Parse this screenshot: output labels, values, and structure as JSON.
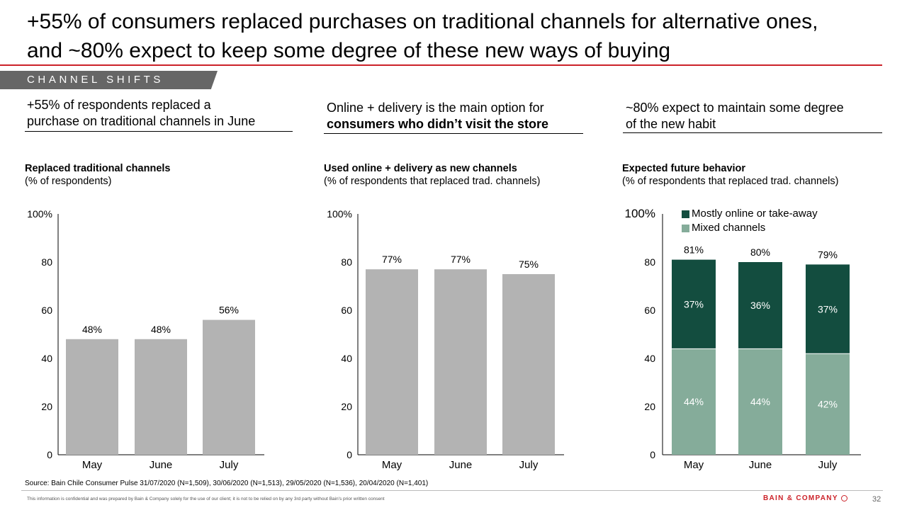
{
  "headline": {
    "line1": "+55% of consumers replaced purchases on traditional channels for alternative ones,",
    "line2": "and ~80% expect to keep some degree of these new ways of buying"
  },
  "section_tag": "CHANNEL SHIFTS",
  "subheads": [
    {
      "line1": "+55% of respondents replaced a",
      "line2": "purchase on traditional channels in June"
    },
    {
      "line1": "Online + delivery is the main option for",
      "line2": "consumers who didn’t visit the store"
    },
    {
      "line1": "~80% expect to maintain some degree",
      "line2": "of the new habit"
    }
  ],
  "colors": {
    "accent_red": "#cc2229",
    "bar_grey": "#b3b3b3",
    "dark_green": "#134d3f",
    "light_green": "#85ac9a",
    "tag_grey": "#666666"
  },
  "source": "Source: Bain Chile Consumer Pulse 31/07/2020 (N=1,509), 30/06/2020 (N=1,513), 29/05/2020 (N=1,536), 20/04/2020 (N=1,401)",
  "footer": {
    "disclaimer": "This information is confidential and was prepared by Bain & Company solely for the use of our client; it is not to be relied on by any 3rd party without Bain's prior written consent",
    "logo": "BAIN & COMPANY",
    "page_number": "32"
  },
  "chart_data": [
    {
      "type": "bar",
      "title": "Replaced traditional channels",
      "subtitle": "(% of respondents)",
      "categories": [
        "May",
        "June",
        "July"
      ],
      "values": [
        48,
        48,
        56
      ],
      "value_labels": [
        "48%",
        "48%",
        "56%"
      ],
      "yticks": [
        "0",
        "20",
        "40",
        "60",
        "80",
        "100%"
      ],
      "ylim": [
        0,
        100
      ],
      "grid": false
    },
    {
      "type": "bar",
      "title": "Used online + delivery as new channels",
      "subtitle": "(% of respondents that replaced trad. channels)",
      "categories": [
        "May",
        "June",
        "July"
      ],
      "values": [
        77,
        77,
        75
      ],
      "value_labels": [
        "77%",
        "77%",
        "75%"
      ],
      "yticks": [
        "0",
        "20",
        "40",
        "60",
        "80",
        "100%"
      ],
      "ylim": [
        0,
        100
      ],
      "grid": false
    },
    {
      "type": "bar",
      "stacked": true,
      "title": "Expected future behavior",
      "subtitle": "(% of respondents that replaced trad. channels)",
      "categories": [
        "May",
        "June",
        "July"
      ],
      "series": [
        {
          "name": "Mixed channels",
          "values": [
            44,
            44,
            42
          ],
          "labels": [
            "44%",
            "44%",
            "42%"
          ],
          "color": "#85ac9a"
        },
        {
          "name": "Mostly online or take-away",
          "values": [
            37,
            36,
            37
          ],
          "labels": [
            "37%",
            "36%",
            "37%"
          ],
          "color": "#134d3f"
        }
      ],
      "totals": [
        "81%",
        "80%",
        "79%"
      ],
      "legend_order": [
        "Mostly online or take-away",
        "Mixed channels"
      ],
      "legend_position": "top",
      "yticks": [
        "0",
        "20",
        "40",
        "60",
        "80",
        "100%"
      ],
      "ylim": [
        0,
        100
      ],
      "grid": false
    }
  ]
}
